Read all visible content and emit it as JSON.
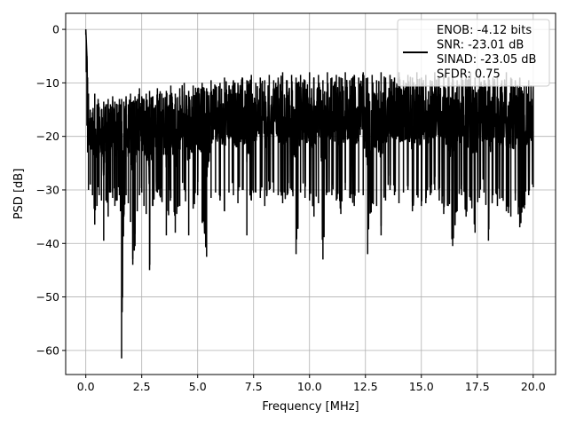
{
  "chart_data": {
    "type": "line",
    "xlabel": "Frequency [MHz]",
    "ylabel": "PSD [dB]",
    "xlim": [
      -0.9,
      21.0
    ],
    "ylim": [
      -64.5,
      3.0
    ],
    "x_ticks": [
      0.0,
      2.5,
      5.0,
      7.5,
      10.0,
      12.5,
      15.0,
      17.5,
      20.0
    ],
    "x_tick_labels": [
      "0.0",
      "2.5",
      "5.0",
      "7.5",
      "10.0",
      "12.5",
      "15.0",
      "17.5",
      "20.0"
    ],
    "y_ticks": [
      0,
      -10,
      -20,
      -30,
      -40,
      -50,
      -60
    ],
    "y_tick_labels": [
      "0",
      "−10",
      "−20",
      "−30",
      "−40",
      "−50",
      "−60"
    ],
    "grid": true,
    "legend_position": "top-right",
    "legend": [
      "ENOB: -4.12 bits",
      "SNR: -23.01 dB",
      "SINAD: -23.05 dB",
      "SFDR: 0.75"
    ],
    "series": [
      {
        "color": "#000000",
        "x": [
          0.0,
          0.02,
          0.05,
          0.08,
          0.12,
          0.2,
          0.3,
          0.4,
          0.5,
          0.55,
          0.6,
          0.7,
          0.8,
          0.9,
          1.0,
          1.1,
          1.2,
          1.3,
          1.4,
          1.5,
          1.55,
          1.6,
          1.7,
          1.8,
          1.9,
          2.0,
          2.1,
          2.2,
          2.3,
          2.4,
          2.5,
          2.6,
          2.7,
          2.85,
          3.0,
          3.2,
          3.4,
          3.6,
          3.8,
          4.0,
          4.2,
          4.4,
          4.6,
          4.8,
          5.0,
          5.2,
          5.4,
          5.6,
          5.8,
          6.0,
          6.2,
          6.4,
          6.6,
          6.8,
          7.0,
          7.2,
          7.4,
          7.6,
          7.8,
          8.0,
          8.2,
          8.4,
          8.6,
          8.8,
          9.0,
          9.2,
          9.4,
          9.6,
          9.8,
          10.0,
          10.2,
          10.4,
          10.6,
          10.8,
          11.0,
          11.2,
          11.4,
          11.6,
          11.8,
          12.0,
          12.2,
          12.4,
          12.6,
          12.8,
          13.0,
          13.2,
          13.4,
          13.6,
          13.8,
          14.0,
          14.2,
          14.4,
          14.6,
          14.8,
          15.0,
          15.2,
          15.4,
          15.6,
          15.8,
          16.0,
          16.2,
          16.4,
          16.6,
          16.8,
          17.0,
          17.2,
          17.4,
          17.6,
          17.8,
          18.0,
          18.2,
          18.4,
          18.6,
          18.8,
          19.0,
          19.2,
          19.4,
          19.6,
          19.8,
          20.0
        ],
        "y_max": [
          0.0,
          -2.0,
          -5.0,
          -9.0,
          -12.0,
          -15.0,
          -15.5,
          -12.0,
          -14.0,
          -13.0,
          -14.5,
          -15.0,
          -13.5,
          -14.0,
          -13.0,
          -14.0,
          -12.5,
          -13.5,
          -14.0,
          -13.0,
          -14.0,
          -13.0,
          -13.5,
          -12.5,
          -14.0,
          -12.0,
          -13.5,
          -12.5,
          -13.0,
          -11.0,
          -12.5,
          -13.0,
          -12.0,
          -11.5,
          -12.5,
          -11.0,
          -12.0,
          -11.5,
          -10.5,
          -12.0,
          -11.0,
          -10.0,
          -11.5,
          -10.5,
          -11.0,
          -10.0,
          -11.0,
          -9.5,
          -10.5,
          -10.0,
          -9.0,
          -10.5,
          -9.5,
          -10.0,
          -9.0,
          -9.5,
          -8.5,
          -10.0,
          -9.0,
          -9.5,
          -8.5,
          -9.5,
          -9.0,
          -8.0,
          -9.5,
          -8.5,
          -9.0,
          -8.5,
          -9.5,
          -8.0,
          -9.0,
          -8.5,
          -9.5,
          -8.0,
          -9.0,
          -8.5,
          -9.0,
          -8.0,
          -9.5,
          -8.5,
          -9.0,
          -8.0,
          -9.0,
          -8.5,
          -9.5,
          -8.0,
          -9.0,
          -8.5,
          -9.0,
          -8.0,
          -9.5,
          -8.5,
          -9.0,
          -8.0,
          -9.0,
          -8.5,
          -9.5,
          -8.0,
          -9.0,
          -8.5,
          -9.0,
          -8.0,
          -9.5,
          -8.5,
          -9.0,
          -8.0,
          -9.0,
          -8.5,
          -9.5,
          -8.5,
          -9.0,
          -8.5,
          -9.5,
          -8.0,
          -9.0,
          -9.5,
          -9.0,
          -10.5,
          -9.5,
          -10.5
        ],
        "y_min": [
          -1.0,
          -8.0,
          -18.0,
          -23.0,
          -30.0,
          -29.0,
          -31.0,
          -36.5,
          -33.0,
          -29.5,
          -31.0,
          -32.0,
          -39.5,
          -32.0,
          -35.0,
          -30.5,
          -31.5,
          -33.0,
          -32.0,
          -31.0,
          -34.0,
          -61.5,
          -35.0,
          -31.0,
          -32.5,
          -36.0,
          -44.0,
          -40.5,
          -34.0,
          -31.0,
          -30.5,
          -33.0,
          -34.5,
          -45.0,
          -33.0,
          -30.5,
          -32.0,
          -38.5,
          -31.5,
          -38.0,
          -33.0,
          -30.0,
          -38.5,
          -33.5,
          -31.0,
          -36.0,
          -42.5,
          -31.5,
          -30.5,
          -32.0,
          -34.0,
          -30.5,
          -31.0,
          -32.5,
          -30.0,
          -38.5,
          -32.0,
          -30.5,
          -31.5,
          -33.0,
          -30.0,
          -30.5,
          -31.0,
          -32.5,
          -31.0,
          -30.0,
          -42.0,
          -30.5,
          -31.5,
          -32.0,
          -35.0,
          -32.5,
          -43.0,
          -30.5,
          -31.0,
          -32.0,
          -34.5,
          -30.0,
          -31.5,
          -33.0,
          -30.5,
          -31.0,
          -42.0,
          -32.5,
          -33.0,
          -38.5,
          -32.0,
          -30.0,
          -31.0,
          -32.5,
          -30.5,
          -30.0,
          -34.0,
          -31.0,
          -33.0,
          -32.5,
          -31.0,
          -30.0,
          -32.0,
          -34.5,
          -33.0,
          -40.5,
          -34.0,
          -31.0,
          -35.0,
          -32.0,
          -38.0,
          -31.5,
          -30.5,
          -39.5,
          -31.0,
          -33.0,
          -31.5,
          -34.0,
          -35.0,
          -32.0,
          -37.0,
          -33.5,
          -31.0,
          -29.5
        ]
      }
    ]
  }
}
